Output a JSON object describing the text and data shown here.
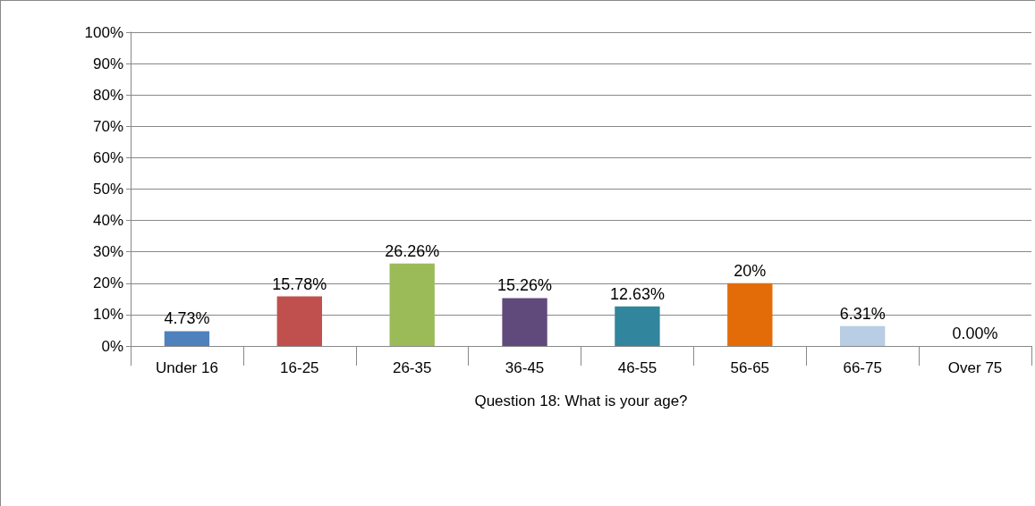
{
  "chart_data": {
    "type": "bar",
    "xlabel": "Question 18: What is your age?",
    "categories": [
      "Under 16",
      "16-25",
      "26-35",
      "36-45",
      "46-55",
      "56-65",
      "66-75",
      "Over 75"
    ],
    "values": [
      4.73,
      15.78,
      26.26,
      15.26,
      12.63,
      20,
      6.31,
      0
    ],
    "value_labels": [
      "4.73%",
      "15.78%",
      "26.26%",
      "15.26%",
      "12.63%",
      "20%",
      "6.31%",
      "0.00%"
    ],
    "colors": [
      "#4f81bd",
      "#c0504d",
      "#9bbb59",
      "#604a7b",
      "#31859c",
      "#e36c09",
      "#b9cde5",
      "#4f81bd"
    ],
    "ylim": [
      0,
      100
    ],
    "yticks": [
      {
        "value": 0,
        "label": "0%"
      },
      {
        "value": 10,
        "label": "10%"
      },
      {
        "value": 20,
        "label": "20%"
      },
      {
        "value": 30,
        "label": "30%"
      },
      {
        "value": 40,
        "label": "40%"
      },
      {
        "value": 50,
        "label": "50%"
      },
      {
        "value": 60,
        "label": "60%"
      },
      {
        "value": 70,
        "label": "70%"
      },
      {
        "value": 80,
        "label": "80%"
      },
      {
        "value": 90,
        "label": "90%"
      },
      {
        "value": 100,
        "label": "100%"
      }
    ],
    "grid": "y"
  }
}
